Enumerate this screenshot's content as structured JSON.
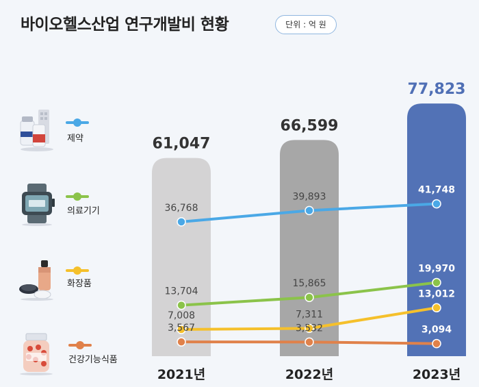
{
  "header": {
    "title": "바이오헬스산업 연구개발비 현황",
    "unit": "단위 : 억 원"
  },
  "legend": [
    {
      "label": "제약",
      "color": "#4aa8e6",
      "icon": "pharma-bottles-icon"
    },
    {
      "label": "의료기기",
      "color": "#8bc34a",
      "icon": "medical-device-icon"
    },
    {
      "label": "화장품",
      "color": "#f5c02b",
      "icon": "cosmetics-icon"
    },
    {
      "label": "건강기능식품",
      "color": "#e0814a",
      "icon": "supplement-jar-icon"
    }
  ],
  "chart_data": {
    "type": "bar",
    "categories": [
      "2021년",
      "2022년",
      "2023년"
    ],
    "totals": [
      61047,
      66599,
      77823
    ],
    "total_labels": [
      "61,047",
      "66,599",
      "77,823"
    ],
    "bar_colors": [
      "#d4d3d4",
      "#a7a7a7",
      "#5272b6"
    ],
    "series": [
      {
        "name": "제약",
        "type": "line",
        "color": "#4aa8e6",
        "values": [
          36768,
          39893,
          41748
        ],
        "labels": [
          "36,768",
          "39,893",
          "41,748"
        ]
      },
      {
        "name": "의료기기",
        "type": "line",
        "color": "#8bc34a",
        "values": [
          13704,
          15865,
          19970
        ],
        "labels": [
          "13,704",
          "15,865",
          "19,970"
        ]
      },
      {
        "name": "화장품",
        "type": "line",
        "color": "#f5c02b",
        "values": [
          7008,
          7311,
          13012
        ],
        "labels": [
          "7,008",
          "7,311",
          "13,012"
        ]
      },
      {
        "name": "건강기능식품",
        "type": "line",
        "color": "#e0814a",
        "values": [
          3567,
          3532,
          3094
        ],
        "labels": [
          "3,567",
          "3,532",
          "3,094"
        ]
      }
    ]
  }
}
